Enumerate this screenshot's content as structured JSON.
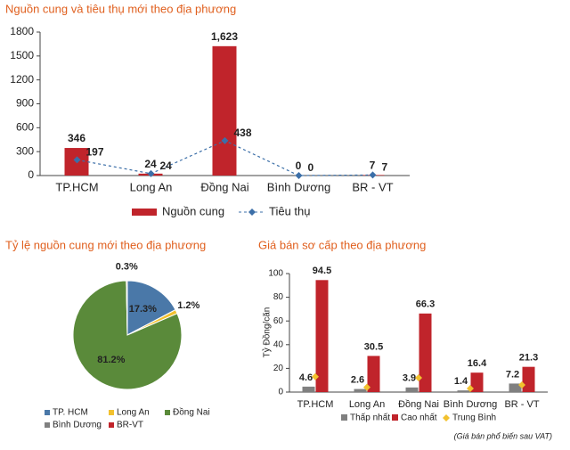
{
  "chart_data": [
    {
      "type": "bar",
      "title": "Nguồn cung và tiêu thụ mới theo địa phương",
      "categories": [
        "TP.HCM",
        "Long An",
        "Đồng Nai",
        "Bình Dương",
        "BR - VT"
      ],
      "series": [
        {
          "name": "Nguồn cung",
          "type": "bar",
          "color": "#c0242b",
          "values": [
            346,
            24,
            1623,
            0,
            7
          ],
          "value_labels": [
            "346",
            "24",
            "1,623",
            "0",
            "7"
          ]
        },
        {
          "name": "Tiêu thụ",
          "type": "line",
          "color": "#3c6fa8",
          "dashed": true,
          "values": [
            197,
            24,
            438,
            0,
            7
          ]
        }
      ],
      "ylim": [
        0,
        1800
      ],
      "yticks": [
        0,
        300,
        600,
        900,
        1200,
        1500,
        1800
      ]
    },
    {
      "type": "pie",
      "title": "Tỷ lệ nguồn cung mới theo địa phương",
      "categories": [
        "TP. HCM",
        "Long An",
        "Đồng Nai",
        "Bình Dương",
        "BR-VT"
      ],
      "colors": [
        "#4a78a8",
        "#f2c12e",
        "#5a8a3a",
        "#808080",
        "#c0242b"
      ],
      "values": [
        17.3,
        1.2,
        81.2,
        0,
        0.3
      ],
      "value_labels": [
        "17.3%",
        "1.2%",
        "81.2%",
        null,
        "0.3%"
      ]
    },
    {
      "type": "bar",
      "title": "Giá bán sơ cấp theo địa phương",
      "y_label": "Tỷ Đồng/căn",
      "note": "(Giá bán phổ biến sau VAT)",
      "categories": [
        "TP.HCM",
        "Long An",
        "Đồng Nai",
        "Bình Dương",
        "BR - VT"
      ],
      "series": [
        {
          "name": "Thấp nhất",
          "type": "bar",
          "color": "#808080",
          "values": [
            4.6,
            2.6,
            3.9,
            1.4,
            7.2
          ]
        },
        {
          "name": "Cao nhất",
          "type": "bar",
          "color": "#c0242b",
          "values": [
            94.5,
            30.5,
            66.3,
            16.4,
            21.3
          ]
        },
        {
          "name": "Trung Bình",
          "type": "marker",
          "color": "#f2c12e",
          "values": [
            13,
            4,
            12,
            3,
            6
          ]
        }
      ],
      "ylim": [
        0,
        100
      ],
      "yticks": [
        0,
        20,
        40,
        60,
        80,
        100
      ]
    }
  ]
}
